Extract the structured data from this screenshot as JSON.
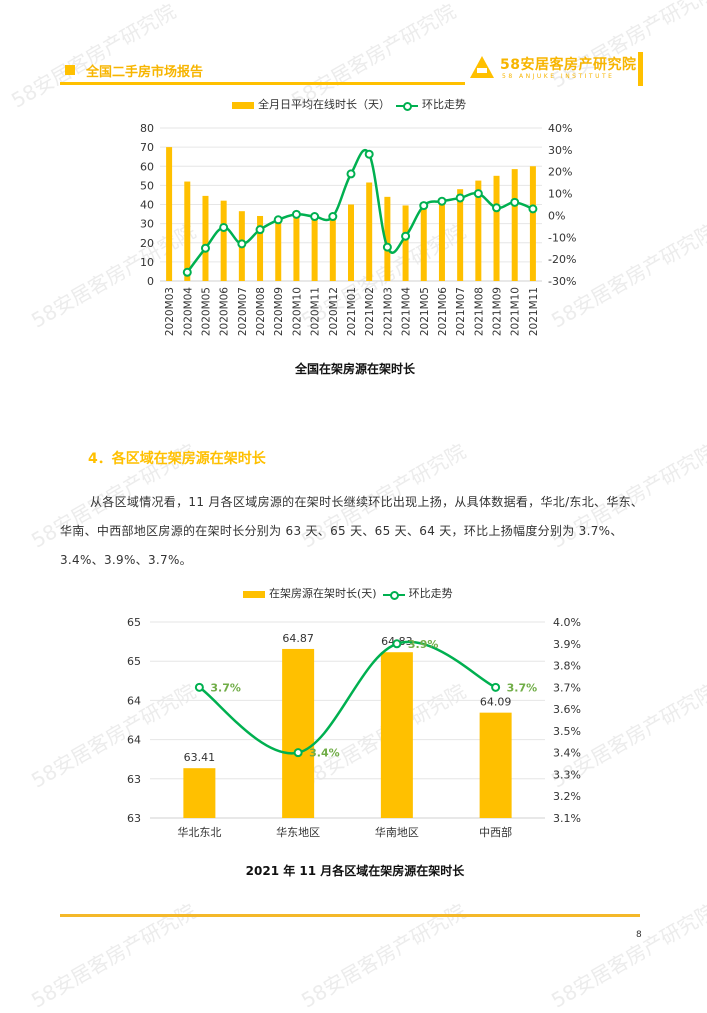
{
  "header": {
    "title": "全国二手房市场报告",
    "logo_cn": "58安居客房产研究院",
    "logo_en": "58 ANJUKE INSTITUTE"
  },
  "watermark": "58安居客房产研究院",
  "chart1": {
    "legend_bar": "全月日平均在线时长（天）",
    "legend_line": "环比走势",
    "caption": "全国在架房源在架时长"
  },
  "section": {
    "title": "4．各区域在架房源在架时长",
    "paragraph": "从各区域情况看，11 月各区域房源的在架时长继续环比出现上扬，从具体数据看，华北/东北、华东、华南、中西部地区房源的在架时长分别为 63 天、65 天、65 天、64 天，环比上扬幅度分别为 3.7%、3.4%、3.9%、3.7%。"
  },
  "chart2": {
    "legend_bar": "在架房源在架时长(天)",
    "legend_line": "环比走势",
    "caption": "2021 年 11 月各区域在架房源在架时长"
  },
  "footer": {
    "page_number": "8"
  },
  "colors": {
    "accent": "#FFC000",
    "line": "#00B050",
    "label_green": "#70AD47"
  },
  "chart_data": [
    {
      "type": "bar",
      "title": "全国在架房源在架时长",
      "categories": [
        "2020M03",
        "2020M04",
        "2020M05",
        "2020M06",
        "2020M07",
        "2020M08",
        "2020M09",
        "2020M10",
        "2020M11",
        "2020M12",
        "2021M01",
        "2021M02",
        "2021M03",
        "2021M04",
        "2021M05",
        "2021M06",
        "2021M07",
        "2021M08",
        "2021M09",
        "2021M10",
        "2021M11"
      ],
      "series": [
        {
          "name": "全月日平均在线时长（天）",
          "type": "bar",
          "axis": "left",
          "values": [
            70,
            52,
            44.5,
            42,
            36.5,
            34,
            32,
            35.5,
            34.5,
            34,
            40,
            51.5,
            44,
            39.5,
            39.5,
            42,
            48,
            52.5,
            55,
            58.5,
            60
          ]
        },
        {
          "name": "环比走势",
          "type": "line",
          "axis": "right",
          "values": [
            null,
            -26,
            -15,
            -5.5,
            -13,
            -6.5,
            -2,
            0.5,
            -0.5,
            -0.5,
            19,
            28,
            -14.5,
            -9.5,
            4.5,
            6.5,
            8,
            10,
            3.5,
            6,
            3
          ]
        }
      ],
      "left_axis": {
        "ylim": [
          0,
          80
        ],
        "ticks": [
          "0",
          "10",
          "20",
          "30",
          "40",
          "50",
          "60",
          "70",
          "80"
        ]
      },
      "right_axis": {
        "ylim": [
          -30,
          40
        ],
        "ticks": [
          "-30%",
          "-20%",
          "-10%",
          "0%",
          "10%",
          "20%",
          "30%",
          "40%"
        ]
      },
      "legend_position": "top",
      "grid": true
    },
    {
      "type": "bar",
      "title": "2021 年 11 月各区域在架房源在架时长",
      "categories": [
        "华北东北",
        "华东地区",
        "华南地区",
        "中西部"
      ],
      "series": [
        {
          "name": "在架房源在架时长(天)",
          "type": "bar",
          "axis": "left",
          "values": [
            63.41,
            64.87,
            64.83,
            64.09
          ],
          "labels": [
            "63.41",
            "64.87",
            "64.83",
            "64.09"
          ]
        },
        {
          "name": "环比走势",
          "type": "line",
          "axis": "right",
          "values": [
            3.7,
            3.4,
            3.9,
            3.7
          ],
          "labels": [
            "3.7%",
            "3.4%",
            "3.9%",
            "3.7%"
          ]
        }
      ],
      "left_axis": {
        "ylim": [
          62.8,
          65.2
        ],
        "ticks": [
          "63",
          "63",
          "64",
          "64",
          "65",
          "65"
        ]
      },
      "right_axis": {
        "ylim": [
          3.1,
          4.0
        ],
        "ticks": [
          "3.1%",
          "3.2%",
          "3.3%",
          "3.4%",
          "3.5%",
          "3.6%",
          "3.7%",
          "3.8%",
          "3.9%",
          "4.0%"
        ]
      },
      "legend_position": "top",
      "grid": true
    }
  ]
}
